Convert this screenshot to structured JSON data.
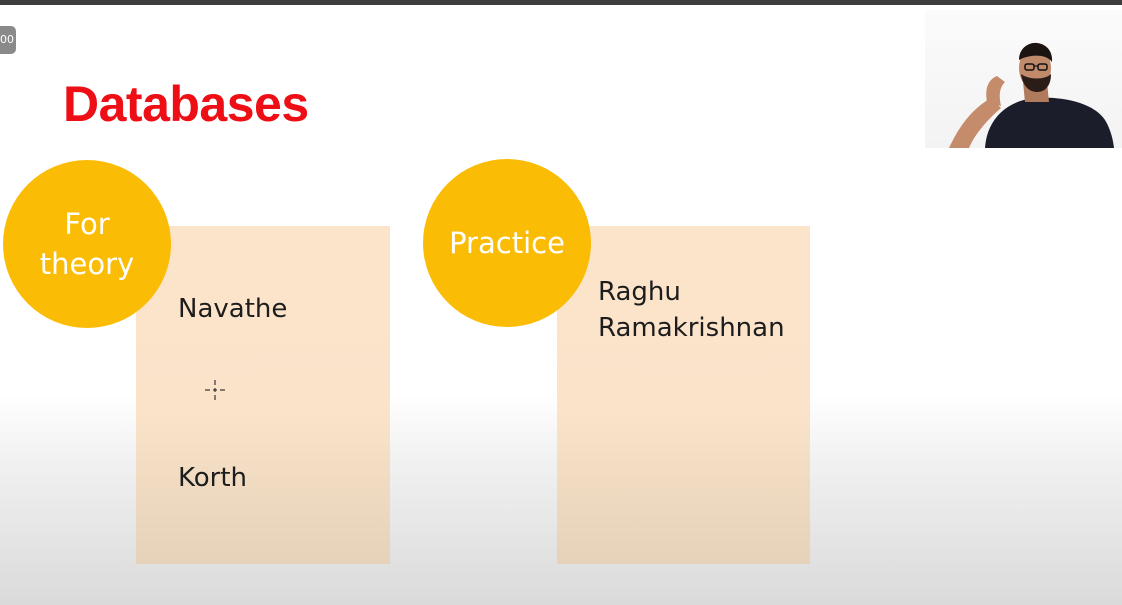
{
  "slide": {
    "title": "Databases",
    "sections": [
      {
        "label": "For\ntheory",
        "books": [
          "Navathe",
          "Korth"
        ]
      },
      {
        "label": "Practice",
        "books": [
          "Raghu\nRamakrishnan"
        ]
      }
    ]
  },
  "overlay": {
    "timer_badge": "00",
    "cursor_icon": "crosshair-cursor-icon",
    "webcam_feed": "presenter-webcam-video"
  },
  "colors": {
    "title": "#ee0f16",
    "circle": "#fbbc05",
    "card": "#fce4cb",
    "top_bar": "#3d3d3d"
  }
}
